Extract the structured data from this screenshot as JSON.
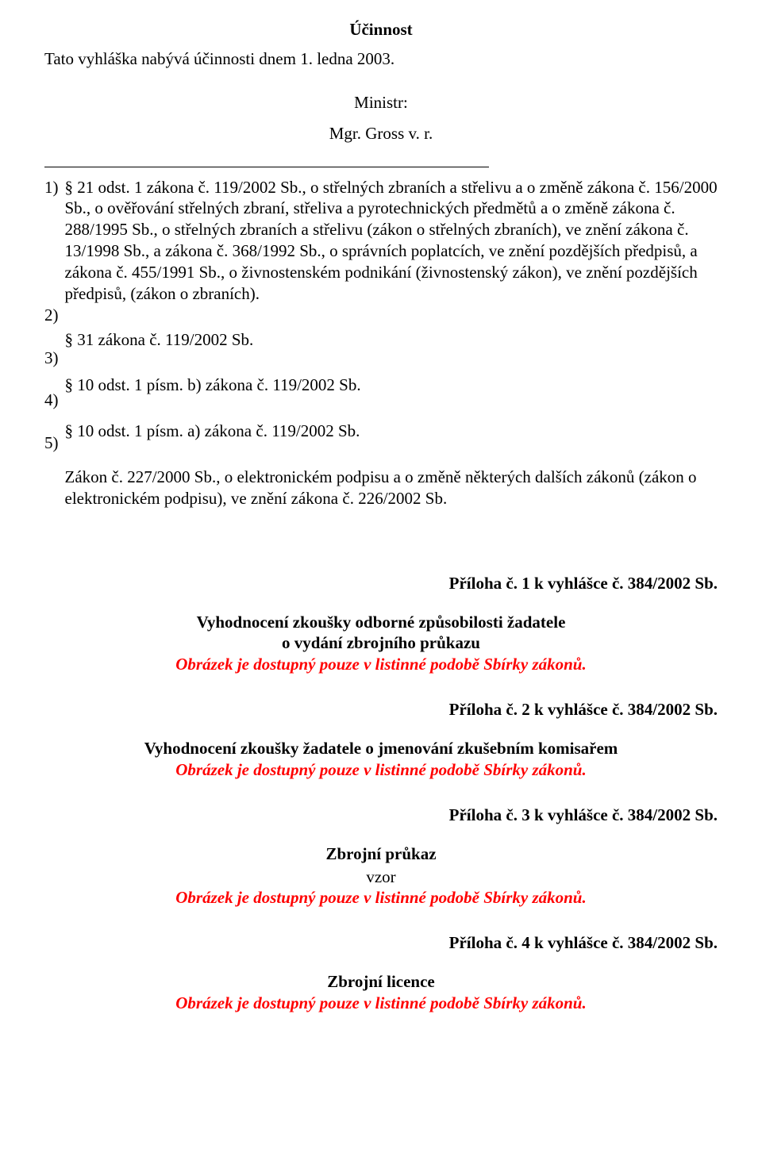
{
  "colors": {
    "text": "#000000",
    "background": "#ffffff",
    "emphasis_red": "#ff0000",
    "rule": "#000000"
  },
  "typography": {
    "font_family": "Times New Roman",
    "body_fontsize_pt": 15,
    "line_height": 1.28
  },
  "heading": "Účinnost",
  "effectiveness_sentence": "Tato vyhláška nabývá účinnosti dnem 1. ledna 2003.",
  "signature": {
    "label": "Ministr:",
    "name": "Mgr. Gross v. r."
  },
  "footnotes": {
    "n1": "1)",
    "n2": "2)",
    "n3": "3)",
    "n4": "4)",
    "n5": "5)",
    "e1": "§ 21 odst. 1 zákona č. 119/2002 Sb., o střelných zbraních a střelivu a o změně zákona č. 156/2000 Sb., o ověřování střelných zbraní, střeliva a pyrotechnických předmětů a o změně zákona č. 288/1995 Sb., o střelných zbraních a střelivu (zákon o střelných zbraních), ve znění zákona č. 13/1998 Sb., a zákona č. 368/1992 Sb., o správních poplatcích, ve znění pozdějších předpisů, a zákona č. 455/1991 Sb., o živnostenském podnikání (živnostenský zákon), ve znění pozdějších předpisů, (zákon o zbraních).",
    "e2": "§ 31 zákona č. 119/2002 Sb.",
    "e3": "§ 10 odst. 1 písm. b) zákona č. 119/2002 Sb.",
    "e4": "§ 10 odst. 1 písm. a) zákona č. 119/2002 Sb.",
    "e5": "Zákon č. 227/2000 Sb., o elektronickém podpisu a o změně některých dalších zákonů (zákon o elektronickém podpisu), ve znění zákona č. 226/2002 Sb."
  },
  "appendices": {
    "common_note": "Obrázek je dostupný pouze v listinné podobě Sbírky zákonů.",
    "a1": {
      "label": "Příloha č. 1 k vyhlášce č. 384/2002 Sb.",
      "title_line1": "Vyhodnocení zkoušky odborné způsobilosti žadatele",
      "title_line2": "o vydání zbrojního průkazu"
    },
    "a2": {
      "label": "Příloha č. 2 k vyhlášce č. 384/2002 Sb.",
      "title_line1": "Vyhodnocení zkoušky žadatele o jmenování zkušebním komisařem"
    },
    "a3": {
      "label": "Příloha č. 3 k vyhlášce č. 384/2002 Sb.",
      "title_line1": "Zbrojní průkaz",
      "subtitle": "vzor"
    },
    "a4": {
      "label": "Příloha č. 4 k vyhlášce č. 384/2002 Sb.",
      "title_line1": "Zbrojní licence"
    }
  }
}
